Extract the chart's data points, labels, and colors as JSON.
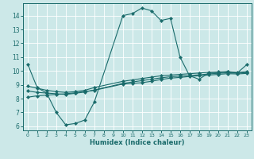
{
  "xlabel": "Humidex (Indice chaleur)",
  "bg_color": "#cce8e8",
  "line_color": "#1a6b6b",
  "grid_color": "#ffffff",
  "xlim": [
    -0.5,
    23.5
  ],
  "ylim": [
    5.7,
    14.9
  ],
  "yticks": [
    6,
    7,
    8,
    9,
    10,
    11,
    12,
    13,
    14
  ],
  "xticks": [
    0,
    1,
    2,
    3,
    4,
    5,
    6,
    7,
    8,
    9,
    10,
    11,
    12,
    13,
    14,
    15,
    16,
    17,
    18,
    19,
    20,
    21,
    22,
    23
  ],
  "series": [
    {
      "x": [
        0,
        1,
        2,
        3,
        4,
        5,
        6,
        7,
        10,
        11,
        12,
        13,
        14,
        15,
        16,
        17,
        18,
        19,
        20,
        21,
        22,
        23
      ],
      "y": [
        10.5,
        8.8,
        8.4,
        7.0,
        6.1,
        6.2,
        6.45,
        7.75,
        14.0,
        14.15,
        14.55,
        14.35,
        13.65,
        13.8,
        11.0,
        9.65,
        9.4,
        9.85,
        9.85,
        9.95,
        9.85,
        10.45
      ]
    },
    {
      "x": [
        0,
        1,
        2,
        3,
        4,
        5,
        6,
        7,
        10,
        11,
        12,
        13,
        14,
        15,
        16,
        17,
        18,
        19,
        20,
        21,
        22,
        23
      ],
      "y": [
        8.9,
        8.75,
        8.6,
        8.5,
        8.45,
        8.5,
        8.6,
        8.8,
        9.25,
        9.35,
        9.45,
        9.55,
        9.65,
        9.7,
        9.75,
        9.8,
        9.85,
        9.9,
        9.93,
        9.95,
        9.9,
        9.95
      ]
    },
    {
      "x": [
        0,
        1,
        2,
        3,
        4,
        5,
        6,
        7,
        10,
        11,
        12,
        13,
        14,
        15,
        16,
        17,
        18,
        19,
        20,
        21,
        22,
        23
      ],
      "y": [
        8.55,
        8.45,
        8.4,
        8.35,
        8.3,
        8.38,
        8.48,
        8.62,
        9.1,
        9.2,
        9.3,
        9.4,
        9.5,
        9.58,
        9.62,
        9.67,
        9.72,
        9.78,
        9.83,
        9.87,
        9.84,
        9.88
      ]
    },
    {
      "x": [
        0,
        1,
        2,
        3,
        4,
        5,
        6,
        7,
        10,
        11,
        12,
        13,
        14,
        15,
        16,
        17,
        18,
        19,
        20,
        21,
        22,
        23
      ],
      "y": [
        8.1,
        8.2,
        8.25,
        8.3,
        8.35,
        8.42,
        8.5,
        8.6,
        9.05,
        9.1,
        9.15,
        9.25,
        9.38,
        9.48,
        9.53,
        9.6,
        9.65,
        9.7,
        9.75,
        9.8,
        9.78,
        9.82
      ]
    }
  ]
}
